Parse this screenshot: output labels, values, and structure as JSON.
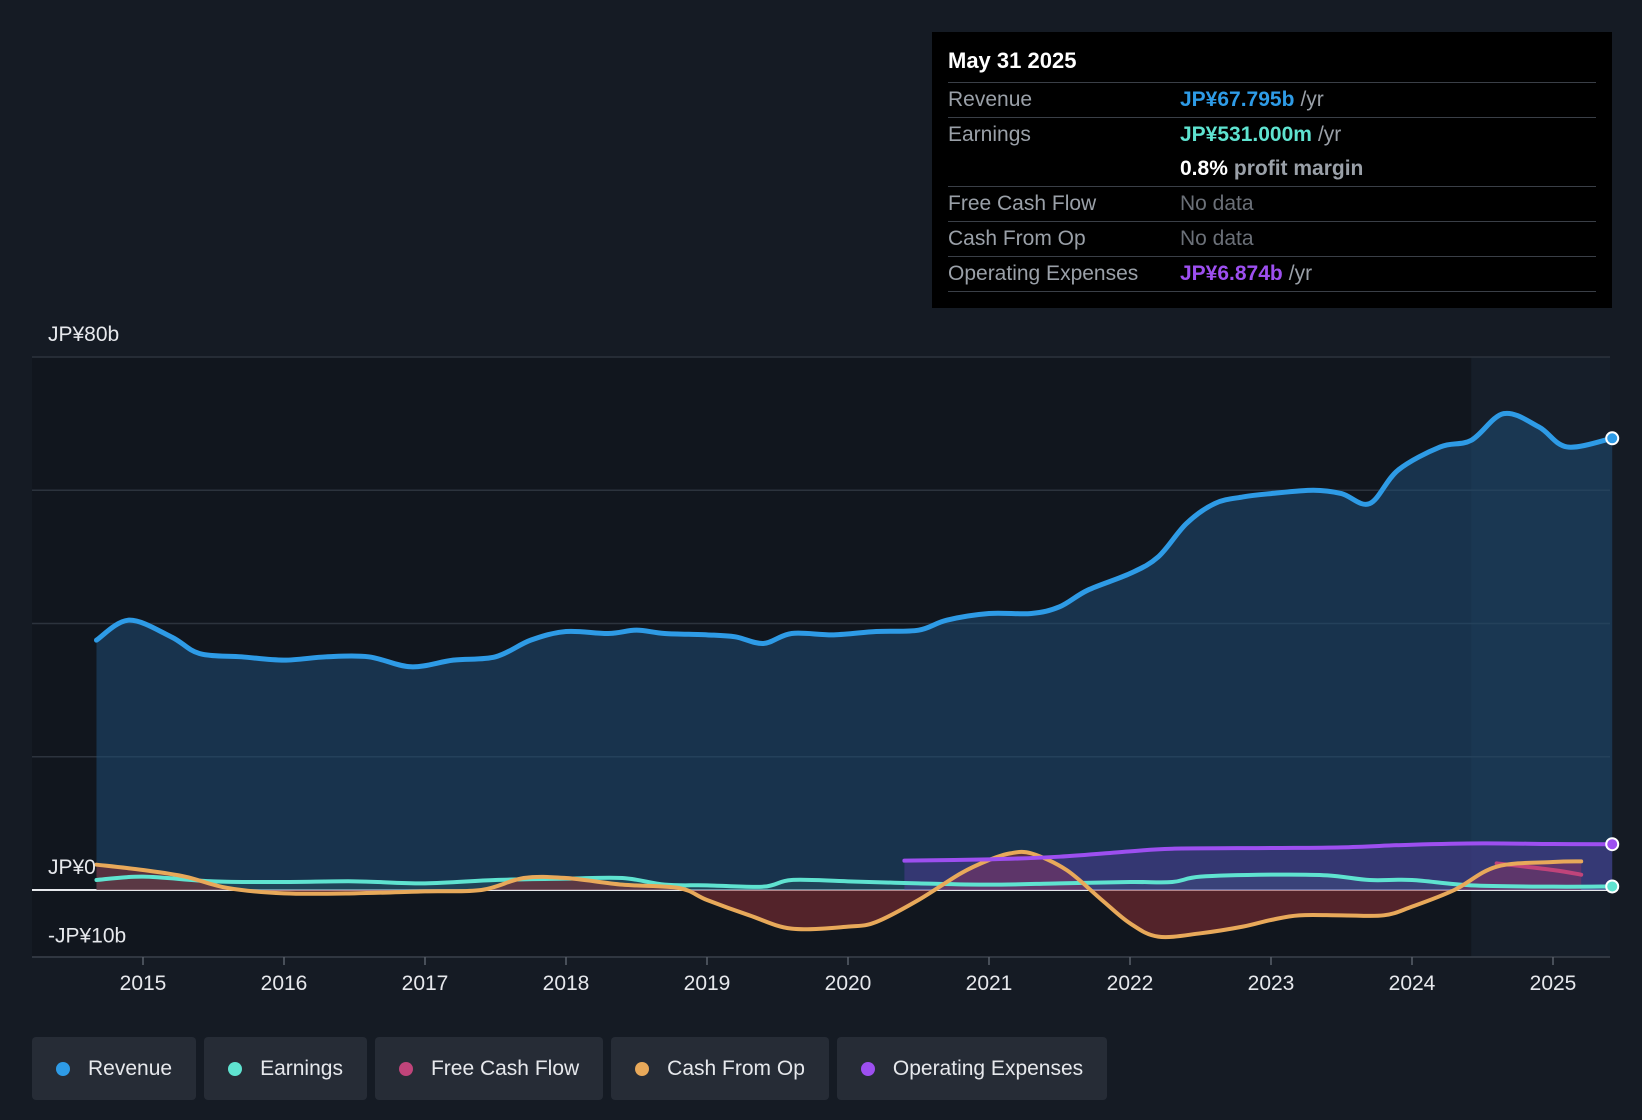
{
  "tooltip": {
    "date": "May 31 2025",
    "revenue": {
      "label": "Revenue",
      "value": "JP¥67.795b",
      "unit": "/yr"
    },
    "earnings": {
      "label": "Earnings",
      "value": "JP¥531.000m",
      "unit": "/yr"
    },
    "margin": {
      "value": "0.8%",
      "label": "profit margin"
    },
    "fcf": {
      "label": "Free Cash Flow",
      "value": "No data"
    },
    "cfo": {
      "label": "Cash From Op",
      "value": "No data"
    },
    "opex": {
      "label": "Operating Expenses",
      "value": "JP¥6.874b",
      "unit": "/yr"
    }
  },
  "legend": [
    {
      "label": "Revenue",
      "color": "#2e9be6"
    },
    {
      "label": "Earnings",
      "color": "#5fe3d0"
    },
    {
      "label": "Free Cash Flow",
      "color": "#c0447a"
    },
    {
      "label": "Cash From Op",
      "color": "#e8a95a"
    },
    {
      "label": "Operating Expenses",
      "color": "#9d4ff0"
    }
  ],
  "chart_data": {
    "type": "line",
    "title": "",
    "xlabel": "",
    "ylabel": "",
    "ylim": [
      -10,
      80
    ],
    "xlim": [
      2014.6,
      2025.42
    ],
    "y_tick_labels": [
      "JP¥80b",
      "JP¥0",
      "-JP¥10b"
    ],
    "y_tick_values": [
      80,
      0,
      -10
    ],
    "grid_values": [
      80,
      60,
      40,
      20,
      0
    ],
    "x_ticks": [
      2015,
      2016,
      2017,
      2018,
      2019,
      2020,
      2021,
      2022,
      2023,
      2024,
      2025
    ],
    "forecast_start": 2024.42,
    "series": [
      {
        "name": "Revenue",
        "color": "#2e9be6",
        "points": [
          [
            2014.67,
            37.5
          ],
          [
            2014.9,
            40.5
          ],
          [
            2015.2,
            38
          ],
          [
            2015.4,
            35.5
          ],
          [
            2015.7,
            35
          ],
          [
            2016,
            34.5
          ],
          [
            2016.3,
            35
          ],
          [
            2016.6,
            35
          ],
          [
            2016.9,
            33.5
          ],
          [
            2017.2,
            34.5
          ],
          [
            2017.5,
            35
          ],
          [
            2017.75,
            37.5
          ],
          [
            2018,
            38.8
          ],
          [
            2018.3,
            38.5
          ],
          [
            2018.5,
            39
          ],
          [
            2018.7,
            38.5
          ],
          [
            2019,
            38.3
          ],
          [
            2019.2,
            38
          ],
          [
            2019.4,
            37
          ],
          [
            2019.6,
            38.5
          ],
          [
            2019.9,
            38.3
          ],
          [
            2020.2,
            38.8
          ],
          [
            2020.5,
            39
          ],
          [
            2020.7,
            40.5
          ],
          [
            2021,
            41.5
          ],
          [
            2021.3,
            41.5
          ],
          [
            2021.5,
            42.5
          ],
          [
            2021.7,
            45
          ],
          [
            2022,
            47.5
          ],
          [
            2022.2,
            50
          ],
          [
            2022.4,
            55
          ],
          [
            2022.6,
            58
          ],
          [
            2022.8,
            59
          ],
          [
            2023,
            59.5
          ],
          [
            2023.3,
            60
          ],
          [
            2023.5,
            59.5
          ],
          [
            2023.7,
            58
          ],
          [
            2023.9,
            63
          ],
          [
            2024.2,
            66.5
          ],
          [
            2024.42,
            67.5
          ],
          [
            2024.65,
            71.5
          ],
          [
            2024.9,
            69.5
          ],
          [
            2025.1,
            66.5
          ],
          [
            2025.42,
            67.8
          ]
        ]
      },
      {
        "name": "Earnings",
        "color": "#5fe3d0",
        "points": [
          [
            2014.67,
            1.5
          ],
          [
            2015,
            2
          ],
          [
            2015.5,
            1.3
          ],
          [
            2016,
            1.2
          ],
          [
            2016.5,
            1.3
          ],
          [
            2017,
            1
          ],
          [
            2017.5,
            1.5
          ],
          [
            2018,
            1.7
          ],
          [
            2018.4,
            1.8
          ],
          [
            2018.7,
            0.8
          ],
          [
            2019,
            0.7
          ],
          [
            2019.4,
            0.5
          ],
          [
            2019.6,
            1.5
          ],
          [
            2020,
            1.3
          ],
          [
            2020.5,
            1
          ],
          [
            2021,
            0.8
          ],
          [
            2021.5,
            1
          ],
          [
            2022,
            1.2
          ],
          [
            2022.3,
            1.2
          ],
          [
            2022.5,
            2
          ],
          [
            2023,
            2.3
          ],
          [
            2023.4,
            2.2
          ],
          [
            2023.7,
            1.5
          ],
          [
            2024,
            1.5
          ],
          [
            2024.42,
            0.7
          ],
          [
            2025,
            0.5
          ],
          [
            2025.42,
            0.53
          ]
        ]
      },
      {
        "name": "Free Cash Flow",
        "color": "#c0447a",
        "points": [
          [
            2024.6,
            4
          ],
          [
            2025,
            3
          ],
          [
            2025.2,
            2.3
          ]
        ]
      },
      {
        "name": "Cash From Op",
        "color": "#e8a95a",
        "points": [
          [
            2014.67,
            3.8
          ],
          [
            2015,
            3
          ],
          [
            2015.3,
            2
          ],
          [
            2015.6,
            0.3
          ],
          [
            2016,
            -0.5
          ],
          [
            2016.5,
            -0.5
          ],
          [
            2017,
            -0.2
          ],
          [
            2017.4,
            0
          ],
          [
            2017.7,
            1.8
          ],
          [
            2018,
            1.8
          ],
          [
            2018.4,
            0.8
          ],
          [
            2018.8,
            0.3
          ],
          [
            2019,
            -1.5
          ],
          [
            2019.3,
            -3.8
          ],
          [
            2019.6,
            -5.8
          ],
          [
            2020,
            -5.5
          ],
          [
            2020.2,
            -4.8
          ],
          [
            2020.5,
            -1.5
          ],
          [
            2020.8,
            2.5
          ],
          [
            2021,
            4.5
          ],
          [
            2021.15,
            5.5
          ],
          [
            2021.3,
            5.5
          ],
          [
            2021.55,
            3
          ],
          [
            2021.8,
            -1.5
          ],
          [
            2022,
            -5
          ],
          [
            2022.2,
            -7
          ],
          [
            2022.5,
            -6.5
          ],
          [
            2022.8,
            -5.5
          ],
          [
            2023,
            -4.5
          ],
          [
            2023.2,
            -3.8
          ],
          [
            2023.5,
            -3.8
          ],
          [
            2023.8,
            -3.8
          ],
          [
            2024,
            -2.5
          ],
          [
            2024.3,
            0
          ],
          [
            2024.6,
            3.5
          ],
          [
            2025,
            4.2
          ],
          [
            2025.2,
            4.3
          ]
        ]
      },
      {
        "name": "Operating Expenses",
        "color": "#9d4ff0",
        "points": [
          [
            2020.4,
            4.4
          ],
          [
            2021,
            4.6
          ],
          [
            2021.5,
            5
          ],
          [
            2022,
            5.8
          ],
          [
            2022.3,
            6.2
          ],
          [
            2023,
            6.3
          ],
          [
            2023.5,
            6.4
          ],
          [
            2024,
            6.8
          ],
          [
            2024.5,
            7
          ],
          [
            2025,
            6.9
          ],
          [
            2025.42,
            6.874
          ]
        ]
      }
    ]
  }
}
